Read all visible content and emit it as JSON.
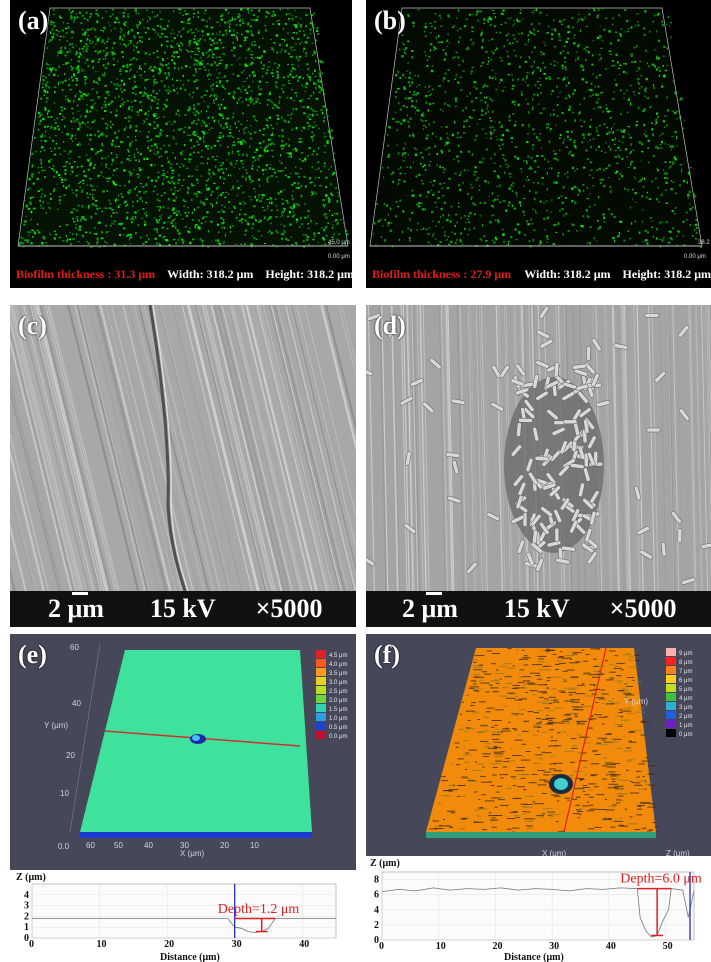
{
  "panels": {
    "a": {
      "label": "(a)",
      "thickness_text": "Biofilm thickness : 31.3 μm",
      "width_text": "Width: 318.2 μm",
      "height_text": "Height: 318.2 μm",
      "z_label": "45.0 μm",
      "origin_label": "0.00 μm"
    },
    "b": {
      "label": "(b)",
      "thickness_text": "Biofilm thickness : 27.9 μm",
      "width_text": "Width: 318.2 μm",
      "height_text": "Height: 318.2 μm",
      "z_label": "38.2",
      "origin_label": "0.00 μm"
    },
    "c": {
      "label": "(c)",
      "scale_text": "2 μm",
      "kv_text": "15 kV",
      "mag_text": "×5000"
    },
    "d": {
      "label": "(d)",
      "scale_text": "2 μm",
      "kv_text": "15 kV",
      "mag_text": "×5000"
    },
    "e": {
      "label": "(e)",
      "y_axis": "Y (μm)",
      "x_axis": "X (μm)",
      "legend": [
        "4.5 μm",
        "4.0 μm",
        "3.5 μm",
        "3.0 μm",
        "2.5 μm",
        "2.0 μm",
        "1.5 μm",
        "1.0 μm",
        "0.5 μm",
        "0.0 μm"
      ],
      "legend_colors": [
        "#e0202a",
        "#ff5a1a",
        "#ff9a1a",
        "#e8d020",
        "#b8e020",
        "#6ad83a",
        "#30d0b0",
        "#2aa0e0",
        "#2040d0",
        "#c01030"
      ],
      "profile_z_label": "Z (μm)",
      "profile_x_label": "Distance (μm)",
      "profile_x_ticks": [
        "0",
        "10",
        "20",
        "30",
        "40"
      ],
      "profile_y_ticks": [
        "0",
        "1",
        "2",
        "3",
        "4"
      ],
      "depth_text": "Depth=1.2 μm"
    },
    "f": {
      "label": "(f)",
      "y_axis": "Y (μm)",
      "x_axis": "X (μm)",
      "z_axis": "Z (μm)",
      "legend": [
        "9 μm",
        "8 μm",
        "7 μm",
        "6 μm",
        "5 μm",
        "4 μm",
        "3 μm",
        "2 μm",
        "1 μm",
        "0 μm"
      ],
      "legend_colors": [
        "#f8b0b0",
        "#ff2020",
        "#ff8020",
        "#ffd020",
        "#c0e020",
        "#40c040",
        "#30b0d0",
        "#2060e0",
        "#7020c0",
        "#000000"
      ],
      "profile_z_label": "Z (μm)",
      "profile_x_label": "Distance (μm)",
      "profile_x_ticks": [
        "0",
        "10",
        "20",
        "30",
        "40",
        "50"
      ],
      "profile_y_ticks": [
        "0",
        "2",
        "4",
        "6",
        "8"
      ],
      "depth_text": "Depth=6.0 μm"
    }
  }
}
